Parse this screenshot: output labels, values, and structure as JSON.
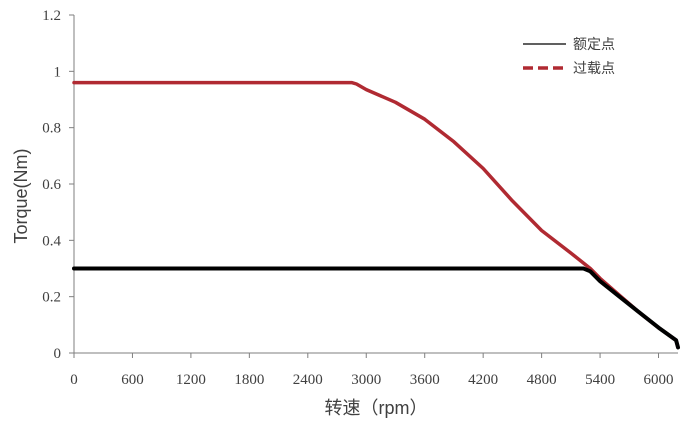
{
  "chart_data": {
    "type": "line",
    "title": "",
    "xlabel": "转速（rpm）",
    "ylabel": "Torque(Nm)",
    "xlim": [
      0,
      6200
    ],
    "ylim": [
      0,
      1.2
    ],
    "x_ticks": [
      0,
      600,
      1200,
      1800,
      2400,
      3000,
      3600,
      4200,
      4800,
      5400,
      6000
    ],
    "y_ticks": [
      0,
      0.2,
      0.4,
      0.6,
      0.8,
      1,
      1.2
    ],
    "x_tick_labels": [
      "0",
      "600",
      "1200",
      "1800",
      "2400",
      "3000",
      "3600",
      "4200",
      "4800",
      "5400",
      "6000"
    ],
    "y_tick_labels": [
      "0",
      "0.2",
      "0.4",
      "0.6",
      "0.8",
      "1",
      "1.2"
    ],
    "grid": false,
    "legend_position": "top-right",
    "series": [
      {
        "name": "额定点",
        "color": "#000000",
        "style": "solid",
        "x": [
          0,
          5230,
          5300,
          5400,
          5600,
          5800,
          6000,
          6180,
          6200
        ],
        "y": [
          0.3,
          0.3,
          0.29,
          0.255,
          0.2,
          0.145,
          0.09,
          0.045,
          0.02
        ]
      },
      {
        "name": "过载点",
        "color": "#b02a32",
        "style": "dashed",
        "x": [
          0,
          2850,
          2900,
          3000,
          3300,
          3600,
          3900,
          4200,
          4500,
          4800,
          5100,
          5300,
          5400,
          5600,
          5800,
          6000,
          6180,
          6200
        ],
        "y": [
          0.96,
          0.96,
          0.955,
          0.935,
          0.89,
          0.83,
          0.75,
          0.655,
          0.54,
          0.435,
          0.355,
          0.3,
          0.265,
          0.205,
          0.145,
          0.09,
          0.045,
          0.02
        ]
      }
    ]
  }
}
